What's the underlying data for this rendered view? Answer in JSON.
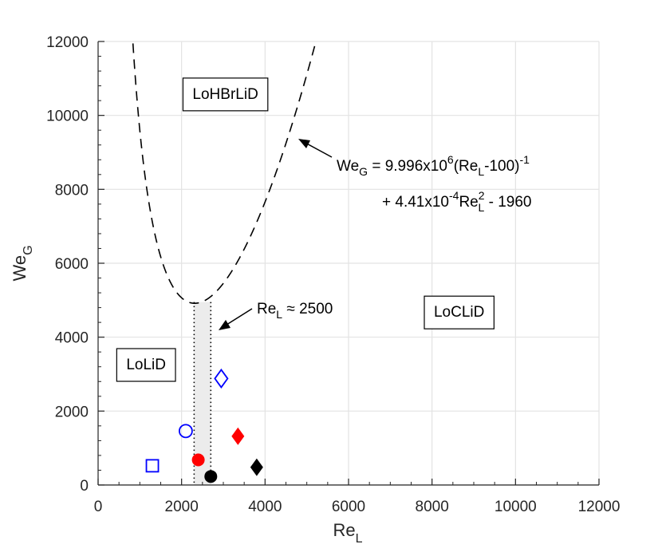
{
  "chart_data": {
    "type": "scatter",
    "xlabel": {
      "main": "Re",
      "sub": "L"
    },
    "ylabel": {
      "main": "We",
      "sub": "G"
    },
    "xlim": [
      0,
      12000
    ],
    "ylim": [
      0,
      12000
    ],
    "x_ticks": [
      0,
      2000,
      4000,
      6000,
      8000,
      10000,
      12000
    ],
    "y_ticks": [
      0,
      2000,
      4000,
      6000,
      8000,
      10000,
      12000
    ],
    "x_tick_labels": [
      "0",
      "2000",
      "4000",
      "6000",
      "8000",
      "10000",
      "12000"
    ],
    "y_tick_labels": [
      "0",
      "2000",
      "4000",
      "6000",
      "8000",
      "10000",
      "12000"
    ],
    "grid": true,
    "boundary_curve": {
      "equation": "We_G = 9.996e6/(Re_L - 100) + 4.41e-4*Re_L^2 - 1960",
      "coef_a": 9996000,
      "offset": 100,
      "coef_b": 0.000441,
      "const": -1960,
      "style": "dashed",
      "color": "#000000"
    },
    "shaded_band": {
      "x": [
        2300,
        2700
      ],
      "y_top": 4950,
      "color": "#ececec"
    },
    "points": [
      {
        "x": 1300,
        "y": 520,
        "marker": "square",
        "filled": false,
        "color": "#0000ff"
      },
      {
        "x": 2100,
        "y": 1460,
        "marker": "circle",
        "filled": false,
        "color": "#0000ff"
      },
      {
        "x": 2950,
        "y": 2880,
        "marker": "diamond",
        "filled": false,
        "color": "#0000ff"
      },
      {
        "x": 2400,
        "y": 680,
        "marker": "circle",
        "filled": true,
        "color": "#ff0000"
      },
      {
        "x": 3350,
        "y": 1320,
        "marker": "diamond",
        "filled": true,
        "color": "#ff0000"
      },
      {
        "x": 2700,
        "y": 230,
        "marker": "circle",
        "filled": true,
        "color": "#000000"
      },
      {
        "x": 3800,
        "y": 480,
        "marker": "diamond",
        "filled": true,
        "color": "#000000"
      }
    ],
    "regions": [
      {
        "label": "LoHBrLiD",
        "x": 3050,
        "y": 10600
      },
      {
        "label": "LoLiD",
        "x": 1150,
        "y": 3280
      },
      {
        "label": "LoCLiD",
        "x": 8650,
        "y": 4700
      }
    ],
    "annotations": {
      "equation_line1": {
        "we": "We",
        "we_sub": "G",
        "mid": " = 9.996x10",
        "sup6": "6",
        "paren": "(Re",
        "paren_sub": "L",
        "tail": "-100)",
        "sup_neg1": "-1"
      },
      "equation_line2": {
        "lead": "+ 4.41x10",
        "sup_neg4": "-4",
        "re": "Re",
        "re_sup": "2",
        "re_sub": "L",
        "tail": " - 1960"
      },
      "re_critical": {
        "re": "Re",
        "re_sub": "L",
        "approx": " ≈ 2500"
      }
    }
  }
}
